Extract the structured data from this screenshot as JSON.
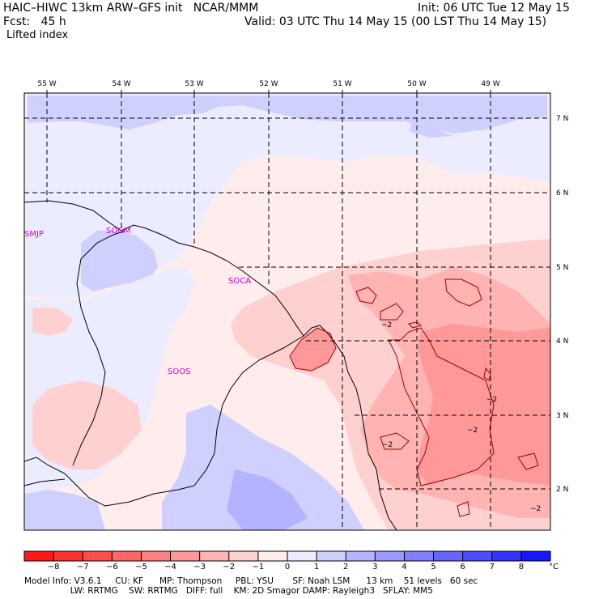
{
  "header": {
    "model": "HAIC–HIWC 13km ARW–GFS init   NCAR/MMM",
    "init": "Init: 06 UTC Tue 12 May 15",
    "fcst": "Fcst:   45 h",
    "valid": "Valid: 03 UTC Thu 14 May 15 (00 LST Thu 14 May 15)",
    "field": "Lifted index"
  },
  "axes": {
    "lon_labels": [
      "55 W",
      "54 W",
      "53 W",
      "52 W",
      "51 W",
      "50 W",
      "49 W"
    ],
    "lat_labels": [
      "7 N",
      "6 N",
      "5 N",
      "4 N",
      "3 N",
      "2 N"
    ]
  },
  "stations": [
    "SMJP",
    "SOGM",
    "SOCA",
    "SOOS"
  ],
  "contour_labels": [
    "−2",
    "−2",
    "−2",
    "−2",
    "−2"
  ],
  "colorbar": {
    "ticks": [
      "−8",
      "−7",
      "−6",
      "−5",
      "−4",
      "−3",
      "−2",
      "−1",
      "0",
      "1",
      "2",
      "3",
      "4",
      "5",
      "6",
      "7",
      "8"
    ],
    "unit": "°C",
    "colors": [
      "#ff1818",
      "#ff3333",
      "#ff4d4d",
      "#ff6666",
      "#ff8080",
      "#ff9999",
      "#ffb3b3",
      "#ffd0d0",
      "#ffecec",
      "#ececff",
      "#d0d0ff",
      "#b3b3ff",
      "#9999ff",
      "#8080ff",
      "#6666ff",
      "#4d4dff",
      "#3333ff",
      "#1818ff"
    ]
  },
  "footer": {
    "line1": "Model Info: V3.6.1     CU: KF      MP: Thompson     PBL: YSU       SF: Noah LSM      13 km    51 levels   60 sec",
    "line2": "                 LW: RRTMG    SW: RRTMG   DIFF: full    KM: 2D Smagor DAMP: Rayleigh3   SFLAY: MM5"
  }
}
